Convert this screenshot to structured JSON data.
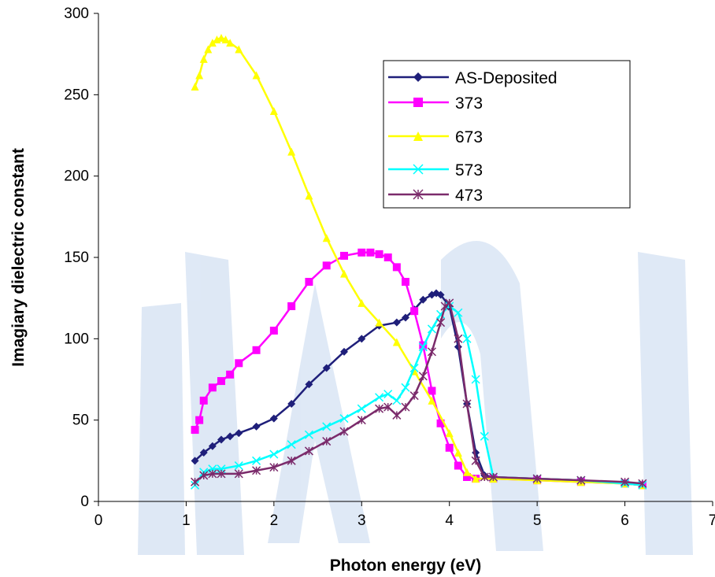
{
  "chart_data": {
    "type": "line",
    "title": "",
    "xlabel": "Photon energy (eV)",
    "ylabel": "Imagiary dielectric constant",
    "xlim": [
      0,
      7
    ],
    "ylim": [
      0,
      300
    ],
    "xticks": [
      "0",
      "1",
      "2",
      "3",
      "4",
      "5",
      "6",
      "7"
    ],
    "yticks": [
      "0",
      "50",
      "100",
      "150",
      "200",
      "250",
      "300"
    ],
    "grid": false,
    "legend_position": "top-right",
    "series": [
      {
        "name": "AS-Deposited",
        "color": "#1f1f7a",
        "marker": "diamond",
        "x": [
          1.1,
          1.2,
          1.3,
          1.4,
          1.5,
          1.6,
          1.8,
          2.0,
          2.2,
          2.4,
          2.6,
          2.8,
          3.0,
          3.2,
          3.4,
          3.5,
          3.6,
          3.7,
          3.8,
          3.85,
          3.9,
          4.0,
          4.1,
          4.2,
          4.3,
          4.4,
          4.5,
          5.0,
          5.5,
          6.0,
          6.2
        ],
        "y": [
          25,
          30,
          34,
          38,
          40,
          42,
          46,
          51,
          60,
          72,
          82,
          92,
          100,
          108,
          110,
          113,
          118,
          124,
          127,
          128,
          127,
          120,
          95,
          60,
          30,
          16,
          15,
          14,
          13,
          11,
          10
        ]
      },
      {
        "name": "373",
        "color": "#ff00ff",
        "marker": "square",
        "x": [
          1.1,
          1.15,
          1.2,
          1.3,
          1.4,
          1.5,
          1.6,
          1.8,
          2.0,
          2.2,
          2.4,
          2.6,
          2.8,
          3.0,
          3.1,
          3.2,
          3.3,
          3.4,
          3.5,
          3.6,
          3.7,
          3.8,
          3.9,
          4.0,
          4.1,
          4.2,
          4.3,
          4.5,
          5.0,
          5.5,
          6.0,
          6.2
        ],
        "y": [
          44,
          50,
          62,
          70,
          74,
          78,
          85,
          93,
          105,
          120,
          135,
          145,
          151,
          153,
          153,
          152,
          150,
          144,
          135,
          117,
          96,
          68,
          48,
          33,
          22,
          15,
          14,
          14,
          13,
          12,
          11,
          10
        ]
      },
      {
        "name": "673",
        "color": "#ffff00",
        "marker": "triangle",
        "x": [
          1.1,
          1.15,
          1.2,
          1.25,
          1.3,
          1.35,
          1.4,
          1.45,
          1.5,
          1.6,
          1.8,
          2.0,
          2.2,
          2.4,
          2.6,
          2.8,
          3.0,
          3.2,
          3.4,
          3.6,
          3.8,
          4.0,
          4.1,
          4.2,
          4.3,
          4.5,
          5.0,
          5.5,
          6.0,
          6.2
        ],
        "y": [
          255,
          262,
          272,
          278,
          282,
          284,
          285,
          284,
          282,
          278,
          262,
          240,
          215,
          188,
          162,
          140,
          122,
          110,
          98,
          80,
          62,
          42,
          30,
          18,
          14,
          14,
          13,
          12,
          11,
          10
        ]
      },
      {
        "name": "573",
        "color": "#00ffff",
        "marker": "x",
        "x": [
          1.1,
          1.2,
          1.3,
          1.4,
          1.6,
          1.8,
          2.0,
          2.2,
          2.4,
          2.6,
          2.8,
          3.0,
          3.2,
          3.3,
          3.4,
          3.5,
          3.6,
          3.7,
          3.8,
          3.9,
          4.0,
          4.1,
          4.2,
          4.3,
          4.4,
          4.5,
          5.0,
          5.5,
          6.0,
          6.2
        ],
        "y": [
          10,
          18,
          20,
          20,
          22,
          25,
          29,
          35,
          41,
          46,
          51,
          57,
          64,
          66,
          62,
          70,
          82,
          95,
          106,
          115,
          120,
          116,
          100,
          75,
          40,
          15,
          14,
          13,
          11,
          10
        ]
      },
      {
        "name": "473",
        "color": "#7b2b6b",
        "marker": "star",
        "x": [
          1.1,
          1.2,
          1.3,
          1.4,
          1.6,
          1.8,
          2.0,
          2.2,
          2.4,
          2.6,
          2.8,
          3.0,
          3.2,
          3.3,
          3.4,
          3.5,
          3.6,
          3.7,
          3.8,
          3.9,
          3.95,
          4.0,
          4.1,
          4.2,
          4.3,
          4.4,
          4.5,
          5.0,
          5.5,
          6.0,
          6.2
        ],
        "y": [
          12,
          16,
          17,
          17,
          17,
          19,
          21,
          25,
          31,
          37,
          43,
          50,
          57,
          58,
          53,
          58,
          65,
          77,
          92,
          110,
          120,
          122,
          100,
          60,
          25,
          15,
          15,
          14,
          13,
          12,
          11
        ]
      }
    ]
  }
}
